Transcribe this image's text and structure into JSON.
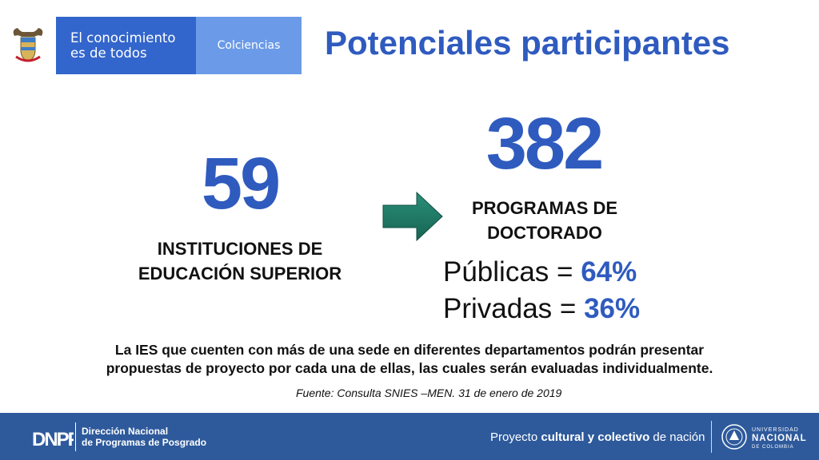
{
  "header": {
    "slogan": "El conocimiento\nes de todos",
    "agency": "Colciencias",
    "title": "Potenciales participantes"
  },
  "left_stat": {
    "number": "59",
    "label": "INSTITUCIONES DE\nEDUCACIÓN SUPERIOR"
  },
  "right_stat": {
    "number": "382",
    "label": "PROGRAMAS DE\nDOCTORADO"
  },
  "breakdown": [
    {
      "label": "Públicas = ",
      "value": "64%"
    },
    {
      "label": "Privadas = ",
      "value": "36%"
    }
  ],
  "note": "La IES que cuenten con más de una sede en diferentes departamentos podrán presentar\npropuestas de proyecto por cada una de ellas, las cuales serán evaluadas individualmente.",
  "source": "Fuente:  Consulta SNIES –MEN.  31 de enero de 2019",
  "footer": {
    "dnpp_logo_text": "DNPP",
    "dnpp_name": "Dirección Nacional\nde Programas de Posgrado",
    "tagline_prefix": "Proyecto ",
    "tagline_bold": "cultural y colectivo",
    "tagline_suffix": " de nación",
    "university_top": "UNIVERSIDAD",
    "university_main": "NACIONAL",
    "university_bottom": "DE COLOMBIA"
  },
  "colors": {
    "accent_blue": "#2f5bbf",
    "gov_blue": "#3366cc",
    "gov_light_blue": "#6b9be8",
    "arrow_green": "#1f7a66",
    "footer_blue": "#2e5a9c"
  },
  "icons": {
    "arrow": "arrow-right-icon",
    "coat_of_arms": "coat-of-arms-icon",
    "university_seal": "university-seal-icon"
  }
}
